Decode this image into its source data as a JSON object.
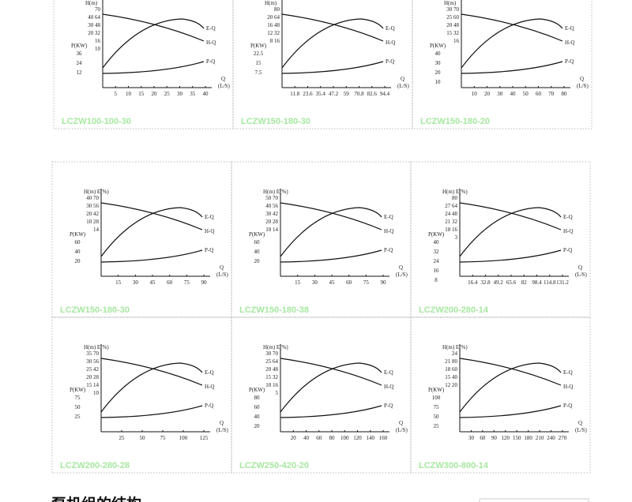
{
  "panels": [
    {
      "model": "LCZW100-100-30",
      "head_label": "H(m)",
      "power_label": "P(KW)",
      "left_ticks": [
        "70",
        "40  64",
        "30  48",
        "20  32",
        "16",
        "10"
      ],
      "power_ticks": [
        "36",
        "24",
        "12"
      ],
      "x_ticks": [
        "5",
        "10",
        "15",
        "20",
        "25",
        "30",
        "35",
        "40"
      ],
      "q_label": "Q",
      "q_unit": "(L/S)",
      "curves": [
        "E-Q",
        "H-Q",
        "P-Q"
      ]
    },
    {
      "model": "LCZW150-180-30",
      "head_label": "H(m)",
      "power_label": "P(KW)",
      "left_ticks": [
        "80",
        "20  64",
        "16  48",
        "12  32",
        "8  16"
      ],
      "power_ticks": [
        "22.5",
        "15",
        "7.5"
      ],
      "x_ticks": [
        "11.8",
        "23.6",
        "35.4",
        "47.2",
        "59",
        "70.8",
        "82.6",
        "94.4"
      ],
      "q_label": "Q",
      "q_unit": "(L/S)",
      "curves": [
        "E-Q",
        "H-Q",
        "P-Q"
      ]
    },
    {
      "model": "LCZW150-180-20",
      "head_label": "H(m)",
      "power_label": "P(KW)",
      "left_ticks": [
        "30  70",
        "25  60",
        "20  48",
        "15  32",
        "16"
      ],
      "power_ticks": [
        "40",
        "30",
        "20",
        "10"
      ],
      "x_ticks": [
        "10",
        "20",
        "30",
        "40",
        "50",
        "60",
        "70",
        "80"
      ],
      "q_label": "Q",
      "q_unit": "(L/S)",
      "curves": [
        "E-Q",
        "H-Q",
        "P-Q"
      ]
    },
    {
      "model": "LCZW150-180-30",
      "head_label": "H(m) E(%)",
      "power_label": "P(KW)",
      "left_ticks": [
        "40  70",
        "30  56",
        "20  42",
        "10  28",
        "14"
      ],
      "power_ticks": [
        "60",
        "40",
        "20"
      ],
      "x_ticks": [
        "15",
        "30",
        "45",
        "60",
        "75",
        "90"
      ],
      "q_label": "Q",
      "q_unit": "(L/S)",
      "curves": [
        "E-Q",
        "H-Q",
        "P-Q"
      ]
    },
    {
      "model": "LCZW150-180-38",
      "head_label": "H(m) E(%)",
      "power_label": "P(KW)",
      "left_ticks": [
        "50  70",
        "40  56",
        "30  42",
        "20  28",
        "10  14"
      ],
      "power_ticks": [
        "60",
        "40",
        "20"
      ],
      "x_ticks": [
        "15",
        "30",
        "45",
        "60",
        "75",
        "90"
      ],
      "q_label": "Q",
      "q_unit": "(L/S)",
      "curves": [
        "E-Q",
        "H-Q",
        "P-Q"
      ]
    },
    {
      "model": "LCZW200-280-14",
      "head_label": "H(m)  E(%)",
      "power_label": "P(KW)",
      "left_ticks": [
        "80",
        "27  64",
        "24  48",
        "21  32",
        "18  16",
        "3"
      ],
      "power_ticks": [
        "40",
        "32",
        "24",
        "16",
        "8"
      ],
      "x_ticks": [
        "16.4",
        "32.8",
        "49.2",
        "65.6",
        "82",
        "98.4",
        "114.8",
        "131.2"
      ],
      "q_label": "Q",
      "q_unit": "(L/S)",
      "curves": [
        "E-Q",
        "H-Q",
        "P-Q"
      ]
    },
    {
      "model": "LCZW200-280-28",
      "head_label": "H(m) E(%)",
      "power_label": "P(KW)",
      "left_ticks": [
        "35  70",
        "30  56",
        "25  42",
        "20  28",
        "15  14",
        "10"
      ],
      "power_ticks": [
        "75",
        "50",
        "25"
      ],
      "x_ticks": [
        "25",
        "50",
        "75",
        "100",
        "125"
      ],
      "q_label": "Q",
      "q_unit": "(L/S)",
      "curves": [
        "E-Q",
        "H-Q",
        "P-Q"
      ]
    },
    {
      "model": "LCZW250-420-20",
      "head_label": "H(m) E(%)",
      "power_label": "P(KW)",
      "left_ticks": [
        "30  70",
        "25  64",
        "20  48",
        "15  32",
        "10  16",
        "5"
      ],
      "power_ticks": [
        "80",
        "60",
        "40",
        "20"
      ],
      "x_ticks": [
        "20",
        "40",
        "60",
        "80",
        "100",
        "120",
        "140",
        "160"
      ],
      "q_label": "Q",
      "q_unit": "(L/S)",
      "curves": [
        "E-Q",
        "H-Q",
        "P-Q"
      ]
    },
    {
      "model": "LCZW300-800-14",
      "head_label": "H(m) E(%)",
      "power_label": "P(KW)",
      "left_ticks": [
        "24",
        "21  80",
        "18  60",
        "15  40",
        "12  20"
      ],
      "power_ticks": [
        "100",
        "75",
        "50",
        "25"
      ],
      "x_ticks": [
        "30",
        "60",
        "90",
        "120",
        "150",
        "180",
        "210",
        "240",
        "270"
      ],
      "q_label": "Q",
      "q_unit": "(L/S)",
      "curves": [
        "E-Q",
        "H-Q",
        "P-Q"
      ]
    }
  ],
  "section_heading": "泵机组的结构"
}
